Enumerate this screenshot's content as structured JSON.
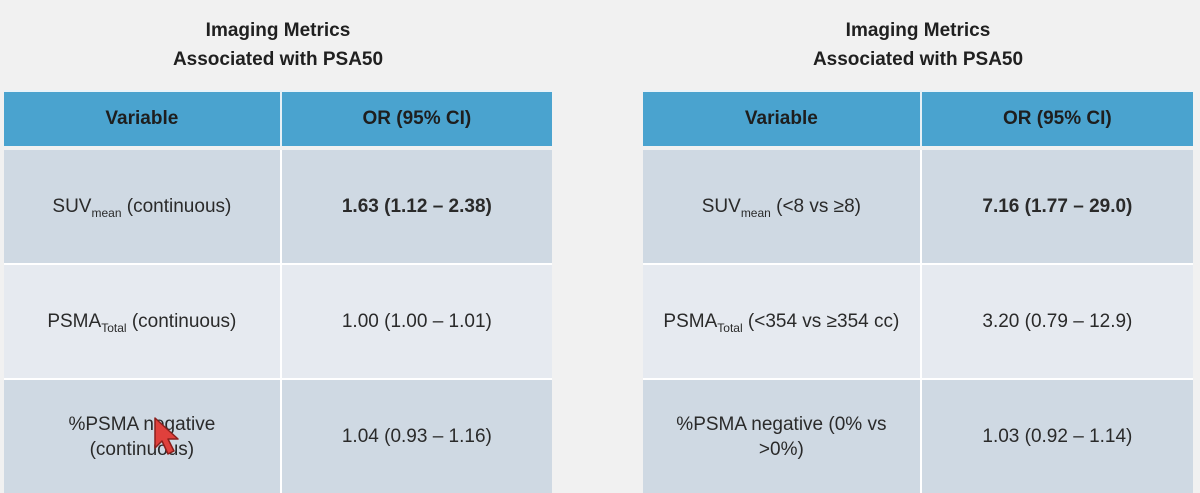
{
  "left": {
    "title_line1": "Imaging Metrics",
    "title_line2": "Associated with PSA50",
    "header_variable": "Variable",
    "header_or": "OR (95% CI)",
    "rows": [
      {
        "var_main": "SUV",
        "var_sub": "mean",
        "var_rest": " (continuous)",
        "or": "1.63 (1.12 – 2.38)"
      },
      {
        "var_main": "PSMA",
        "var_sub": "Total",
        "var_rest": " (continuous)",
        "or": "1.00 (1.00 – 1.01)"
      },
      {
        "var_line1": "%PSMA negative",
        "var_line2": "(continuous)",
        "or": "1.04 (0.93 – 1.16)"
      }
    ]
  },
  "right": {
    "title_line1": "Imaging Metrics",
    "title_line2": "Associated with PSA50",
    "header_variable": "Variable",
    "header_or": "OR (95% CI)",
    "rows": [
      {
        "var_main": "SUV",
        "var_sub": "mean",
        "var_rest": " (<8 vs ≥8)",
        "or": "7.16 (1.77 – 29.0)"
      },
      {
        "var_main": "PSMA",
        "var_sub": "Total",
        "var_rest": " (<354 vs ≥354 cc)",
        "or": "3.20 (0.79 – 12.9)"
      },
      {
        "var_line1": "%PSMA negative (0% vs",
        "var_line2": ">0%)",
        "or": "1.03 (0.92 – 1.14)"
      }
    ]
  },
  "colors": {
    "header_bg": "#4aa3cf",
    "row_dark": "#cfd9e3",
    "row_light": "#e6eaf0",
    "cursor": "#e0403c"
  }
}
